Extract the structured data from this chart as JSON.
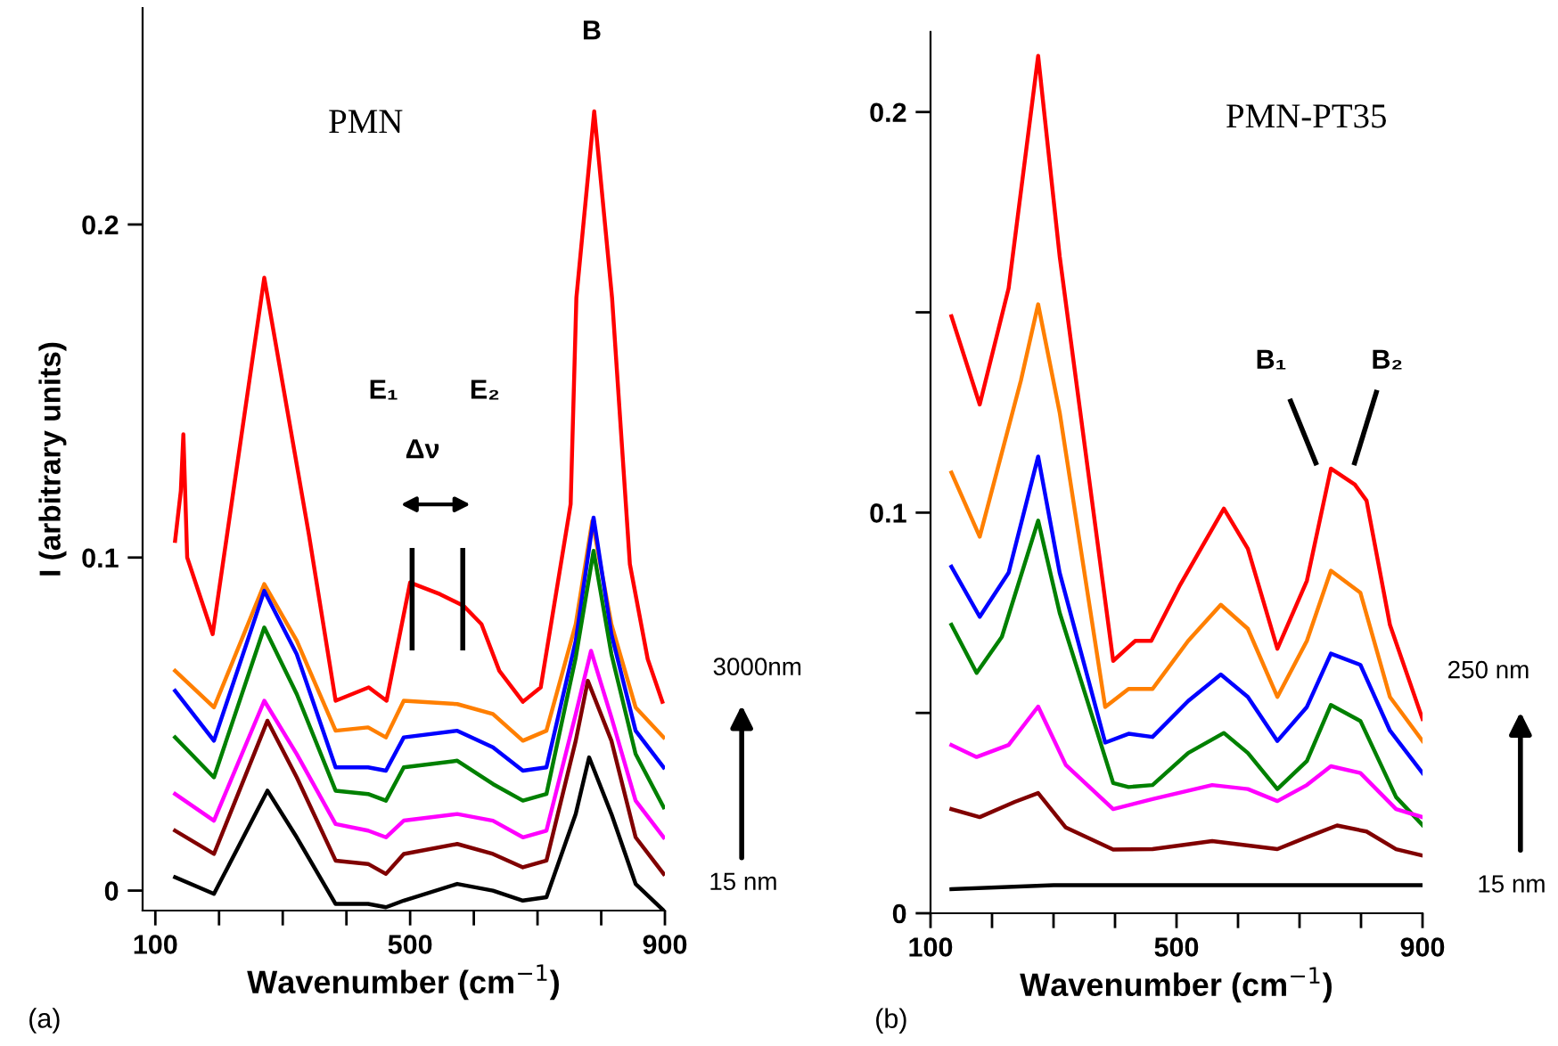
{
  "chart_data": [
    {
      "type": "line",
      "xlabel": "Wavenumber (cm$^{−1}$)",
      "ylabel": "I (arbitrary units)",
      "xlim": [
        80,
        900
      ],
      "ylim": [
        -0.006,
        0.265
      ],
      "xticks": [
        100,
        {
          "value": 200,
          "label": null
        },
        {
          "value": 300,
          "label": null
        },
        {
          "value": 400,
          "label": null
        },
        500,
        {
          "value": 600,
          "label": null
        },
        {
          "value": 700,
          "label": null
        },
        {
          "value": 800,
          "label": null
        },
        900
      ],
      "yticks": [
        0,
        0.1,
        0.2
      ],
      "annotations": [
        "PMN",
        "B",
        "E₁",
        "E₂",
        "Δν",
        "3000nm",
        "15 nm",
        "(a)"
      ],
      "series": [
        {
          "color": "#ff0000",
          "x": [
            131,
            140,
            144,
            150,
            190,
            271,
            341,
            383,
            435,
            463,
            500,
            547,
            584,
            612,
            640,
            677,
            705,
            752,
            761,
            789,
            817,
            845,
            873,
            896
          ],
          "values": [
            0.105,
            0.12,
            0.137,
            0.1,
            0.077,
            0.184,
            0.107,
            0.057,
            0.061,
            0.057,
            0.0925,
            0.089,
            0.0855,
            0.08,
            0.066,
            0.0567,
            0.061,
            0.116,
            0.178,
            0.234,
            0.178,
            0.098,
            0.0695,
            0.0567
          ]
        },
        {
          "color": "#ff7f00",
          "x": [
            131,
            192,
            271,
            322,
            383,
            434,
            462,
            490,
            574,
            630,
            677,
            714,
            760,
            786,
            816,
            854,
            898
          ],
          "values": [
            0.066,
            0.055,
            0.092,
            0.075,
            0.048,
            0.049,
            0.046,
            0.057,
            0.056,
            0.053,
            0.045,
            0.048,
            0.08,
            0.111,
            0.08,
            0.055,
            0.046
          ]
        },
        {
          "color": "#0000ff",
          "x": [
            131,
            192,
            271,
            322,
            383,
            434,
            462,
            490,
            574,
            630,
            677,
            714,
            760,
            788,
            816,
            854,
            898
          ],
          "values": [
            0.06,
            0.045,
            0.09,
            0.071,
            0.037,
            0.037,
            0.036,
            0.046,
            0.048,
            0.043,
            0.036,
            0.037,
            0.075,
            0.112,
            0.077,
            0.048,
            0.037
          ]
        },
        {
          "color": "#008000",
          "x": [
            131,
            192,
            271,
            322,
            383,
            434,
            462,
            490,
            574,
            630,
            677,
            714,
            760,
            788,
            816,
            854,
            898
          ],
          "values": [
            0.046,
            0.034,
            0.079,
            0.059,
            0.03,
            0.029,
            0.027,
            0.037,
            0.039,
            0.032,
            0.027,
            0.029,
            0.07,
            0.102,
            0.071,
            0.041,
            0.025
          ]
        },
        {
          "color": "#ff00ff",
          "x": [
            131,
            192,
            271,
            322,
            383,
            434,
            462,
            490,
            574,
            630,
            677,
            714,
            760,
            784,
            816,
            854,
            898
          ],
          "values": [
            0.029,
            0.021,
            0.057,
            0.041,
            0.02,
            0.018,
            0.016,
            0.021,
            0.023,
            0.021,
            0.016,
            0.018,
            0.053,
            0.072,
            0.052,
            0.027,
            0.016
          ]
        },
        {
          "color": "#800000",
          "x": [
            131,
            192,
            276,
            322,
            383,
            434,
            462,
            490,
            574,
            630,
            677,
            714,
            760,
            779,
            816,
            854,
            898
          ],
          "values": [
            0.018,
            0.011,
            0.051,
            0.034,
            0.009,
            0.008,
            0.005,
            0.011,
            0.014,
            0.011,
            0.007,
            0.009,
            0.045,
            0.063,
            0.045,
            0.016,
            0.005
          ]
        },
        {
          "color": "#000000",
          "x": [
            131,
            192,
            276,
            322,
            383,
            434,
            462,
            490,
            574,
            630,
            677,
            714,
            760,
            781,
            816,
            854,
            898
          ],
          "values": [
            0.004,
            -0.001,
            0.03,
            0.016,
            -0.004,
            -0.004,
            -0.005,
            -0.003,
            0.002,
            0.0,
            -0.003,
            -0.002,
            0.023,
            0.04,
            0.023,
            0.002,
            -0.006
          ]
        }
      ]
    },
    {
      "type": "line",
      "xlabel": "Wavenumber (cm$^{−1}$)",
      "xlim": [
        100,
        900
      ],
      "ylim": [
        0,
        0.22
      ],
      "xticks": [
        100,
        {
          "value": 200,
          "label": null
        },
        {
          "value": 300,
          "label": null
        },
        {
          "value": 400,
          "label": null
        },
        500,
        {
          "value": 600,
          "label": null
        },
        {
          "value": 700,
          "label": null
        },
        {
          "value": 800,
          "label": null
        },
        900
      ],
      "yticks": [
        0,
        {
          "value": 0.05,
          "label": null
        },
        0.1,
        {
          "value": 0.15,
          "label": null
        },
        0.2
      ],
      "annotations": [
        "PMN-PT35",
        "B₁",
        "B₂",
        "250 nm",
        "15 nm",
        "(b)"
      ],
      "series": [
        {
          "color": "#ff0000",
          "x": [
            134,
            180,
            227,
            275,
            310,
            397,
            433,
            459,
            506,
            577,
            616,
            664,
            712,
            751,
            790,
            809,
            847,
            900
          ],
          "values": [
            0.149,
            0.127,
            0.156,
            0.214,
            0.164,
            0.063,
            0.068,
            0.068,
            0.082,
            0.101,
            0.091,
            0.066,
            0.083,
            0.111,
            0.107,
            0.103,
            0.072,
            0.0485
          ]
        },
        {
          "color": "#ff7f00",
          "x": [
            134,
            180,
            247,
            275,
            310,
            384,
            422,
            461,
            519,
            572,
            616,
            664,
            712,
            751,
            799,
            847,
            900
          ],
          "values": [
            0.11,
            0.094,
            0.133,
            0.152,
            0.125,
            0.0515,
            0.056,
            0.056,
            0.068,
            0.077,
            0.071,
            0.054,
            0.068,
            0.0855,
            0.08,
            0.054,
            0.043
          ]
        },
        {
          "color": "#0000ff",
          "x": [
            134,
            180,
            227,
            275,
            310,
            384,
            422,
            461,
            519,
            572,
            616,
            664,
            712,
            751,
            799,
            847,
            900
          ],
          "values": [
            0.0865,
            0.074,
            0.085,
            0.114,
            0.085,
            0.0426,
            0.0448,
            0.044,
            0.053,
            0.0596,
            0.054,
            0.043,
            0.0515,
            0.0648,
            0.062,
            0.0456,
            0.035
          ]
        },
        {
          "color": "#008000",
          "x": [
            134,
            175,
            216,
            275,
            310,
            397,
            422,
            461,
            519,
            577,
            616,
            664,
            712,
            751,
            799,
            857,
            900
          ],
          "values": [
            0.072,
            0.06,
            0.069,
            0.098,
            0.075,
            0.0325,
            0.0315,
            0.032,
            0.04,
            0.045,
            0.04,
            0.031,
            0.038,
            0.052,
            0.048,
            0.029,
            0.022
          ]
        },
        {
          "color": "#ff00ff",
          "x": [
            134,
            175,
            227,
            275,
            320,
            397,
            461,
            558,
            616,
            664,
            712,
            751,
            799,
            857,
            900
          ],
          "values": [
            0.042,
            0.039,
            0.042,
            0.0516,
            0.037,
            0.026,
            0.0285,
            0.032,
            0.031,
            0.028,
            0.032,
            0.0367,
            0.035,
            0.026,
            0.024
          ]
        },
        {
          "color": "#800000",
          "x": [
            134,
            180,
            237,
            275,
            320,
            397,
            461,
            558,
            664,
            712,
            761,
            809,
            857,
            900
          ],
          "values": [
            0.026,
            0.024,
            0.0278,
            0.03,
            0.0214,
            0.0159,
            0.016,
            0.018,
            0.016,
            0.019,
            0.0219,
            0.0204,
            0.016,
            0.0144
          ]
        },
        {
          "color": "#000000",
          "x": [
            134,
            300,
            500,
            700,
            900
          ],
          "values": [
            0.006,
            0.007,
            0.007,
            0.007,
            0.007
          ]
        }
      ]
    }
  ]
}
